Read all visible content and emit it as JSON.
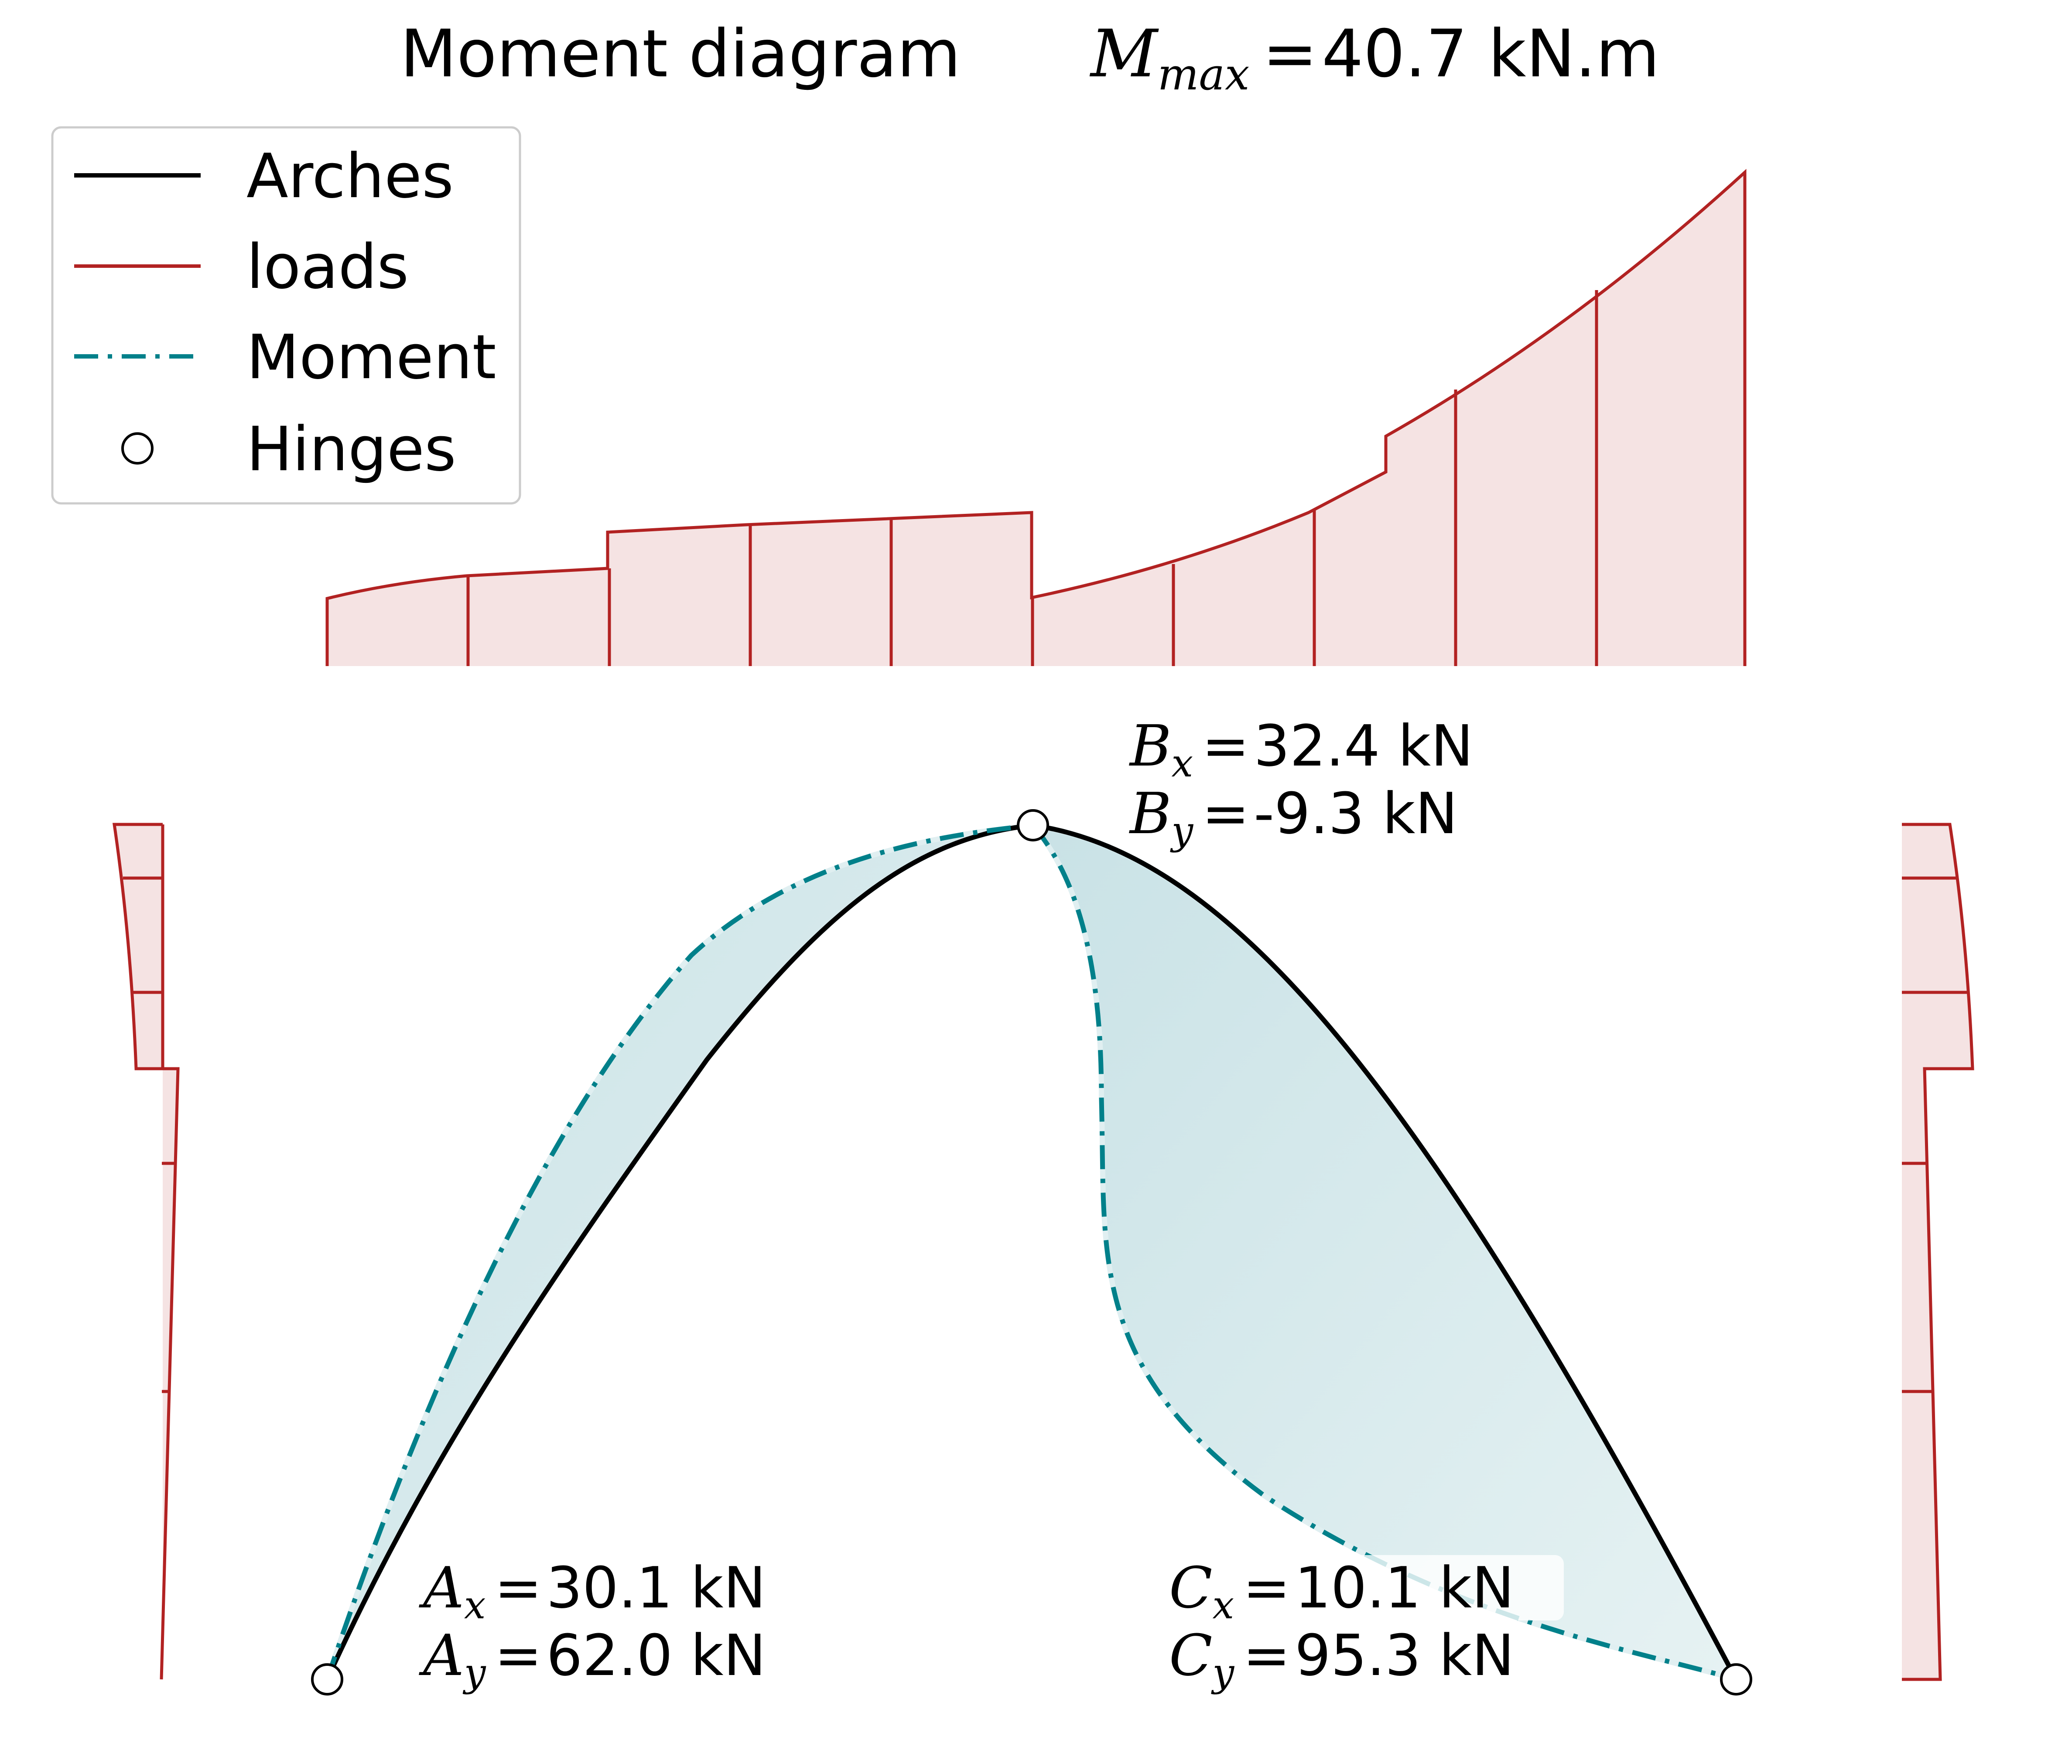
{
  "title": {
    "main": "Moment diagram",
    "mmax_symbol": "M",
    "mmax_sub": "max",
    "mmax_value": "40.7 kN.m"
  },
  "legend": {
    "items": [
      {
        "label": "Arches",
        "kind": "line",
        "color": "#000000"
      },
      {
        "label": "loads",
        "kind": "line",
        "color": "#b22222"
      },
      {
        "label": "Moment",
        "kind": "dashdot",
        "color": "#00808a"
      },
      {
        "label": "Hinges",
        "kind": "circle",
        "color": "#000000"
      }
    ]
  },
  "reactions": {
    "A": {
      "x_symbol": "A",
      "x_sub": "x",
      "x_value": "30.1 kN",
      "y_symbol": "A",
      "y_sub": "y",
      "y_value": "62.0 kN"
    },
    "B": {
      "x_symbol": "B",
      "x_sub": "x",
      "x_value": "32.4 kN",
      "y_symbol": "B",
      "y_sub": "y",
      "y_value": "-9.3 kN"
    },
    "C": {
      "x_symbol": "C",
      "x_sub": "x",
      "x_value": "10.1 kN",
      "y_symbol": "C",
      "y_sub": "y",
      "y_value": "95.3 kN"
    }
  },
  "colors": {
    "arch": "#000000",
    "load": "#b22222",
    "load_fill": "#f5e3e3",
    "moment": "#00808a",
    "moment_fill": "#d4e9ec",
    "moment_edge": "#e0eff1"
  }
}
